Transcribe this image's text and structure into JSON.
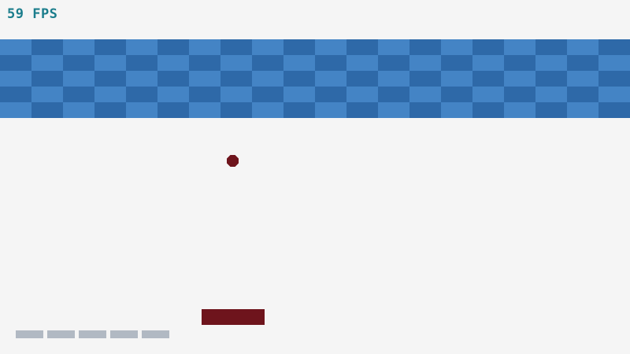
{
  "hud": {
    "fps_text": "59 FPS"
  },
  "game": {
    "brick_rows": 5,
    "brick_cols": 20,
    "lives": 5
  },
  "colors": {
    "background": "#f5f5f5",
    "brick_dark": "#2e69a8",
    "brick_light": "#4484c5",
    "ball": "#6e141c",
    "paddle": "#6e141c",
    "life": "#b1b9c3",
    "fps_text": "#1b7d8c"
  }
}
